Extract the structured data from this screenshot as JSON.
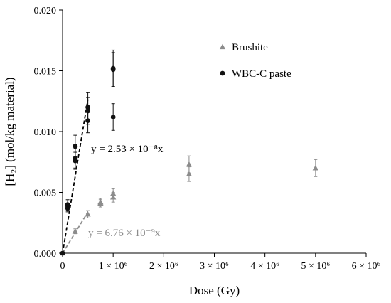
{
  "chart_data": {
    "type": "scatter",
    "xlabel": "Dose (Gy)",
    "ylabel": "[H₂] (mol/kg material)",
    "xlim": [
      0,
      6000000
    ],
    "ylim": [
      0,
      0.02
    ],
    "x_ticks": [
      {
        "value": 0,
        "label": "0"
      },
      {
        "value": 1000000,
        "label": "1 × 10⁶"
      },
      {
        "value": 2000000,
        "label": "2 × 10⁶"
      },
      {
        "value": 3000000,
        "label": "3 × 10⁶"
      },
      {
        "value": 4000000,
        "label": "4 × 10⁶"
      },
      {
        "value": 5000000,
        "label": "5 × 10⁶"
      },
      {
        "value": 6000000,
        "label": "6 × 10⁶"
      }
    ],
    "y_ticks": [
      {
        "value": 0,
        "label": "0.000"
      },
      {
        "value": 0.005,
        "label": "0.005"
      },
      {
        "value": 0.01,
        "label": "0.010"
      },
      {
        "value": 0.015,
        "label": "0.015"
      },
      {
        "value": 0.02,
        "label": "0.020"
      }
    ],
    "grid": false,
    "legend_position": "top-right",
    "series": [
      {
        "name": "Brushite",
        "marker": "triangle",
        "color": "#8c8c8c",
        "points": [
          {
            "x": 0,
            "y": 0.0,
            "err": 0.0001
          },
          {
            "x": 250000,
            "y": 0.0018,
            "err": 0.0002
          },
          {
            "x": 500000,
            "y": 0.0032,
            "err": 0.0003
          },
          {
            "x": 750000,
            "y": 0.0041,
            "err": 0.0003
          },
          {
            "x": 750000,
            "y": 0.0042,
            "err": 0.0003
          },
          {
            "x": 1000000,
            "y": 0.0046,
            "err": 0.0004
          },
          {
            "x": 1000000,
            "y": 0.0049,
            "err": 0.0004
          },
          {
            "x": 2500000,
            "y": 0.0065,
            "err": 0.0006
          },
          {
            "x": 2500000,
            "y": 0.0073,
            "err": 0.0007
          },
          {
            "x": 5000000,
            "y": 0.007,
            "err": 0.0007
          }
        ]
      },
      {
        "name": "WBC-C paste",
        "marker": "circle",
        "color": "#111111",
        "points": [
          {
            "x": 0,
            "y": 0.0,
            "err": 0.0001
          },
          {
            "x": 100000,
            "y": 0.0037,
            "err": 0.0003
          },
          {
            "x": 100000,
            "y": 0.0039,
            "err": 0.0004
          },
          {
            "x": 100000,
            "y": 0.004,
            "err": 0.0004
          },
          {
            "x": 250000,
            "y": 0.0076,
            "err": 0.0007
          },
          {
            "x": 250000,
            "y": 0.0078,
            "err": 0.0008
          },
          {
            "x": 250000,
            "y": 0.0088,
            "err": 0.0009
          },
          {
            "x": 500000,
            "y": 0.0109,
            "err": 0.001
          },
          {
            "x": 500000,
            "y": 0.0117,
            "err": 0.0011
          },
          {
            "x": 500000,
            "y": 0.012,
            "err": 0.0012
          },
          {
            "x": 1000000,
            "y": 0.0112,
            "err": 0.0011
          },
          {
            "x": 1000000,
            "y": 0.0151,
            "err": 0.0014
          },
          {
            "x": 1000000,
            "y": 0.0152,
            "err": 0.0015
          }
        ]
      }
    ],
    "fits": [
      {
        "series": "WBC-C paste",
        "slope": 2.53e-08,
        "x_range": [
          0,
          500000
        ],
        "label": "y = 2.53 × 10⁻⁸x",
        "color": "#000000"
      },
      {
        "series": "Brushite",
        "slope": 6.76e-09,
        "x_range": [
          0,
          500000
        ],
        "label": "y = 6.76 × 10⁻⁹x",
        "color": "#8c8c8c"
      }
    ]
  }
}
